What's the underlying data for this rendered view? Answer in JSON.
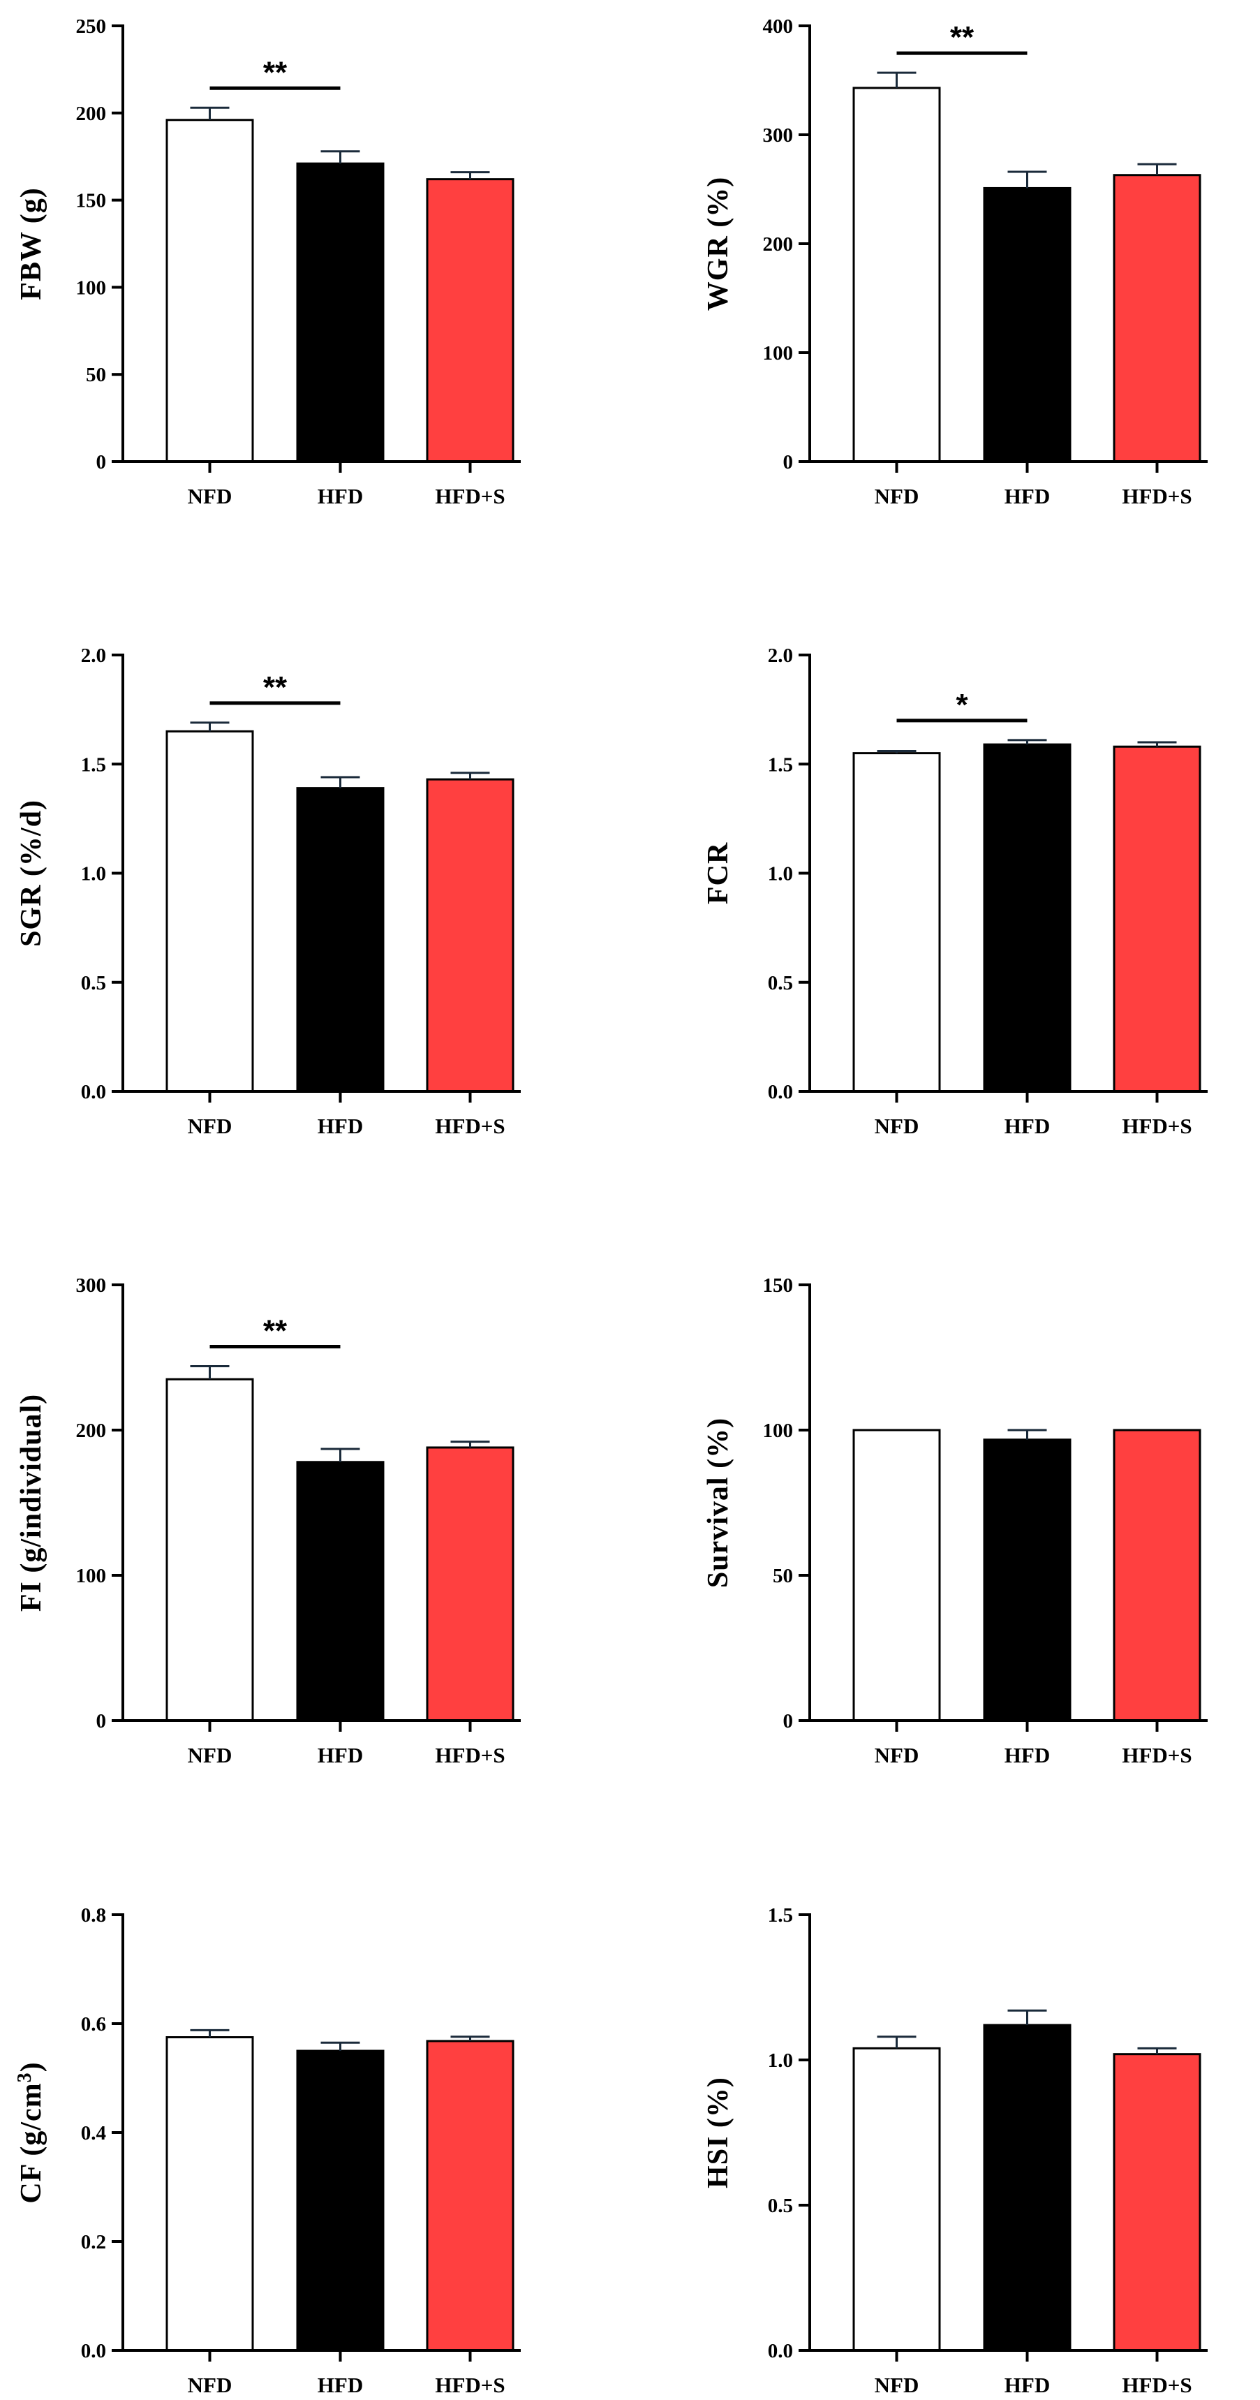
{
  "chart_data": [
    {
      "type": "bar",
      "categories": [
        "NFD",
        "HFD",
        "HFD+S"
      ],
      "values": [
        196,
        171,
        162
      ],
      "errors": [
        7,
        7,
        4
      ],
      "ylabel": "FBW (g)",
      "ylim": [
        0,
        250
      ],
      "yticks": [
        0,
        50,
        100,
        150,
        200,
        250
      ],
      "tick_labels": [
        "0",
        "50",
        "100",
        "150",
        "200",
        "250"
      ],
      "significance": {
        "from": 0,
        "to": 1,
        "label": "**"
      }
    },
    {
      "type": "bar",
      "categories": [
        "NFD",
        "HFD",
        "HFD+S"
      ],
      "values": [
        343,
        251,
        263
      ],
      "errors": [
        14,
        15,
        10
      ],
      "ylabel": "WGR (%)",
      "ylim": [
        0,
        400
      ],
      "yticks": [
        0,
        100,
        200,
        300,
        400
      ],
      "tick_labels": [
        "0",
        "100",
        "200",
        "300",
        "400"
      ],
      "significance": {
        "from": 0,
        "to": 1,
        "label": "**"
      }
    },
    {
      "type": "bar",
      "categories": [
        "NFD",
        "HFD",
        "HFD+S"
      ],
      "values": [
        1.65,
        1.39,
        1.43
      ],
      "errors": [
        0.04,
        0.05,
        0.03
      ],
      "ylabel": "SGR (%/d)",
      "ylim": [
        0,
        2.0
      ],
      "yticks": [
        0,
        0.5,
        1.0,
        1.5,
        2.0
      ],
      "tick_labels": [
        "0.0",
        "0.5",
        "1.0",
        "1.5",
        "2.0"
      ],
      "significance": {
        "from": 0,
        "to": 1,
        "label": "**"
      }
    },
    {
      "type": "bar",
      "categories": [
        "NFD",
        "HFD",
        "HFD+S"
      ],
      "values": [
        1.55,
        1.59,
        1.58
      ],
      "errors": [
        0.01,
        0.02,
        0.02
      ],
      "ylabel": "FCR",
      "ylim": [
        0,
        2.0
      ],
      "yticks": [
        0,
        0.5,
        1.0,
        1.5,
        2.0
      ],
      "tick_labels": [
        "0.0",
        "0.5",
        "1.0",
        "1.5",
        "2.0"
      ],
      "significance": {
        "from": 0,
        "to": 1,
        "label": "*"
      }
    },
    {
      "type": "bar",
      "categories": [
        "NFD",
        "HFD",
        "HFD+S"
      ],
      "values": [
        235,
        178,
        188
      ],
      "errors": [
        9,
        9,
        4
      ],
      "ylabel": "FI (g/individual)",
      "ylim": [
        0,
        300
      ],
      "yticks": [
        0,
        100,
        200,
        300
      ],
      "tick_labels": [
        "0",
        "100",
        "200",
        "300"
      ],
      "significance": {
        "from": 0,
        "to": 1,
        "label": "**"
      }
    },
    {
      "type": "bar",
      "categories": [
        "NFD",
        "HFD",
        "HFD+S"
      ],
      "values": [
        100,
        96.7,
        100
      ],
      "errors": [
        0,
        3.3,
        0
      ],
      "ylabel": "Survival (%)",
      "ylim": [
        0,
        150
      ],
      "yticks": [
        0,
        50,
        100,
        150
      ],
      "tick_labels": [
        "0",
        "50",
        "100",
        "150"
      ]
    },
    {
      "type": "bar",
      "categories": [
        "NFD",
        "HFD",
        "HFD+S"
      ],
      "values": [
        0.575,
        0.55,
        0.568
      ],
      "errors": [
        0.013,
        0.015,
        0.008
      ],
      "ylabel": "CF (g/cm",
      "ylabel_sup": "3",
      "ylabel_end": ")",
      "ylim": [
        0,
        0.8
      ],
      "yticks": [
        0,
        0.2,
        0.4,
        0.6,
        0.8
      ],
      "tick_labels": [
        "0.0",
        "0.2",
        "0.4",
        "0.6",
        "0.8"
      ]
    },
    {
      "type": "bar",
      "categories": [
        "NFD",
        "HFD",
        "HFD+S"
      ],
      "values": [
        1.04,
        1.12,
        1.02
      ],
      "errors": [
        0.04,
        0.05,
        0.02
      ],
      "ylabel": "HSI (%)",
      "ylim": [
        0,
        1.5
      ],
      "yticks": [
        0,
        0.5,
        1.0,
        1.5
      ],
      "tick_labels": [
        "0.0",
        "0.5",
        "1.0",
        "1.5"
      ]
    }
  ],
  "colors": {
    "NFD": "#ffffff",
    "HFD": "#000000",
    "HFD+S": "#ff4040",
    "axis": "#000000"
  }
}
